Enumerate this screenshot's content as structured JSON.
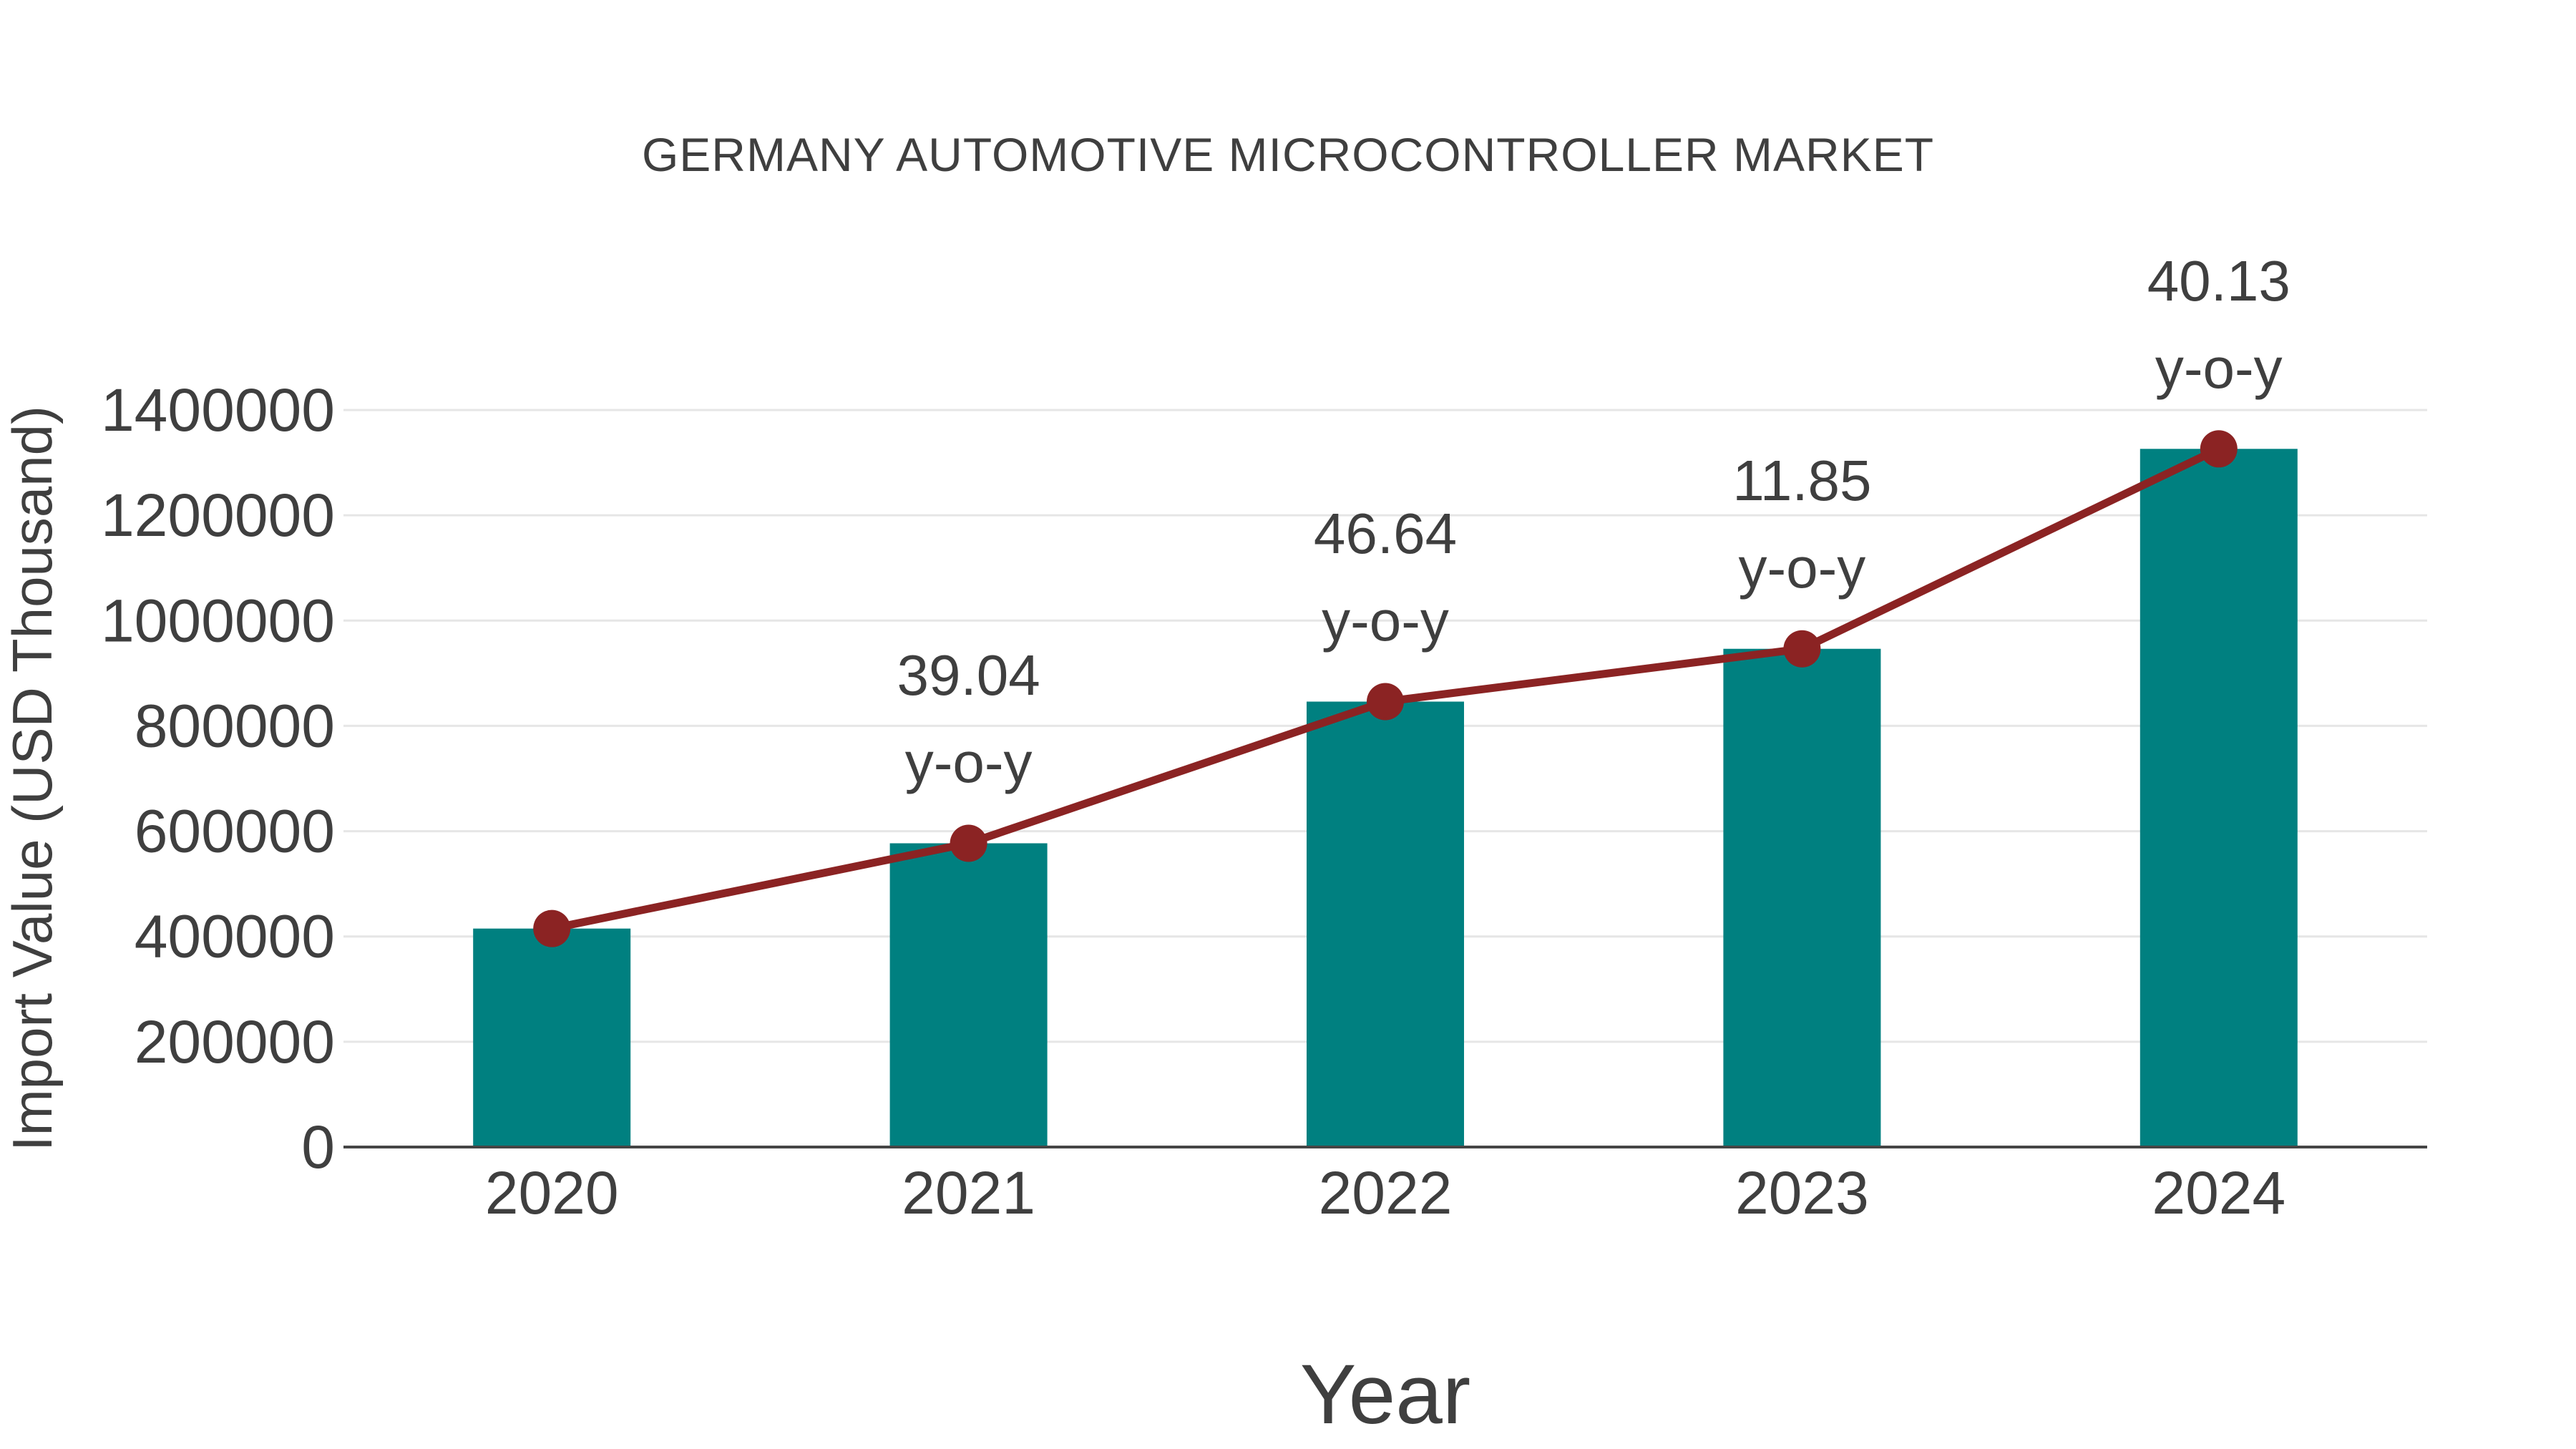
{
  "title": "GERMANY AUTOMOTIVE MICROCONTROLLER MARKET",
  "colors": {
    "bar": "#008080",
    "line": "#8B2323",
    "marker": "#8B2323",
    "text": "#3F3F3F",
    "grid": "#E6E6E6",
    "axis": "#454545",
    "background": "#FFFFFF"
  },
  "chart_data": {
    "type": "bar",
    "title": "GERMANY AUTOMOTIVE MICROCONTROLLER MARKET",
    "xlabel": "Year",
    "ylabel": "Import Value (USD Thousand)",
    "categories": [
      "2020",
      "2021",
      "2022",
      "2023",
      "2024"
    ],
    "series": [
      {
        "name": "Import Value bars",
        "type": "bar",
        "values": [
          415000,
          577000,
          846100,
          946400,
          1326200
        ]
      },
      {
        "name": "Import Value trend line",
        "type": "line",
        "values": [
          415000,
          577000,
          846100,
          946400,
          1326200
        ]
      }
    ],
    "annotations": [
      {
        "category": "2021",
        "line1": "39.04",
        "line2": "y-o-y"
      },
      {
        "category": "2022",
        "line1": "46.64",
        "line2": "y-o-y"
      },
      {
        "category": "2023",
        "line1": "11.85",
        "line2": "y-o-y"
      },
      {
        "category": "2024",
        "line1": "40.13",
        "line2": "y-o-y"
      }
    ],
    "ylim": [
      0,
      1400000
    ],
    "ytick_step": 200000,
    "yticks": [
      "0",
      "200000",
      "400000",
      "600000",
      "800000",
      "1000000",
      "1200000",
      "1400000"
    ],
    "grid": "horizontal",
    "legend": "none"
  }
}
